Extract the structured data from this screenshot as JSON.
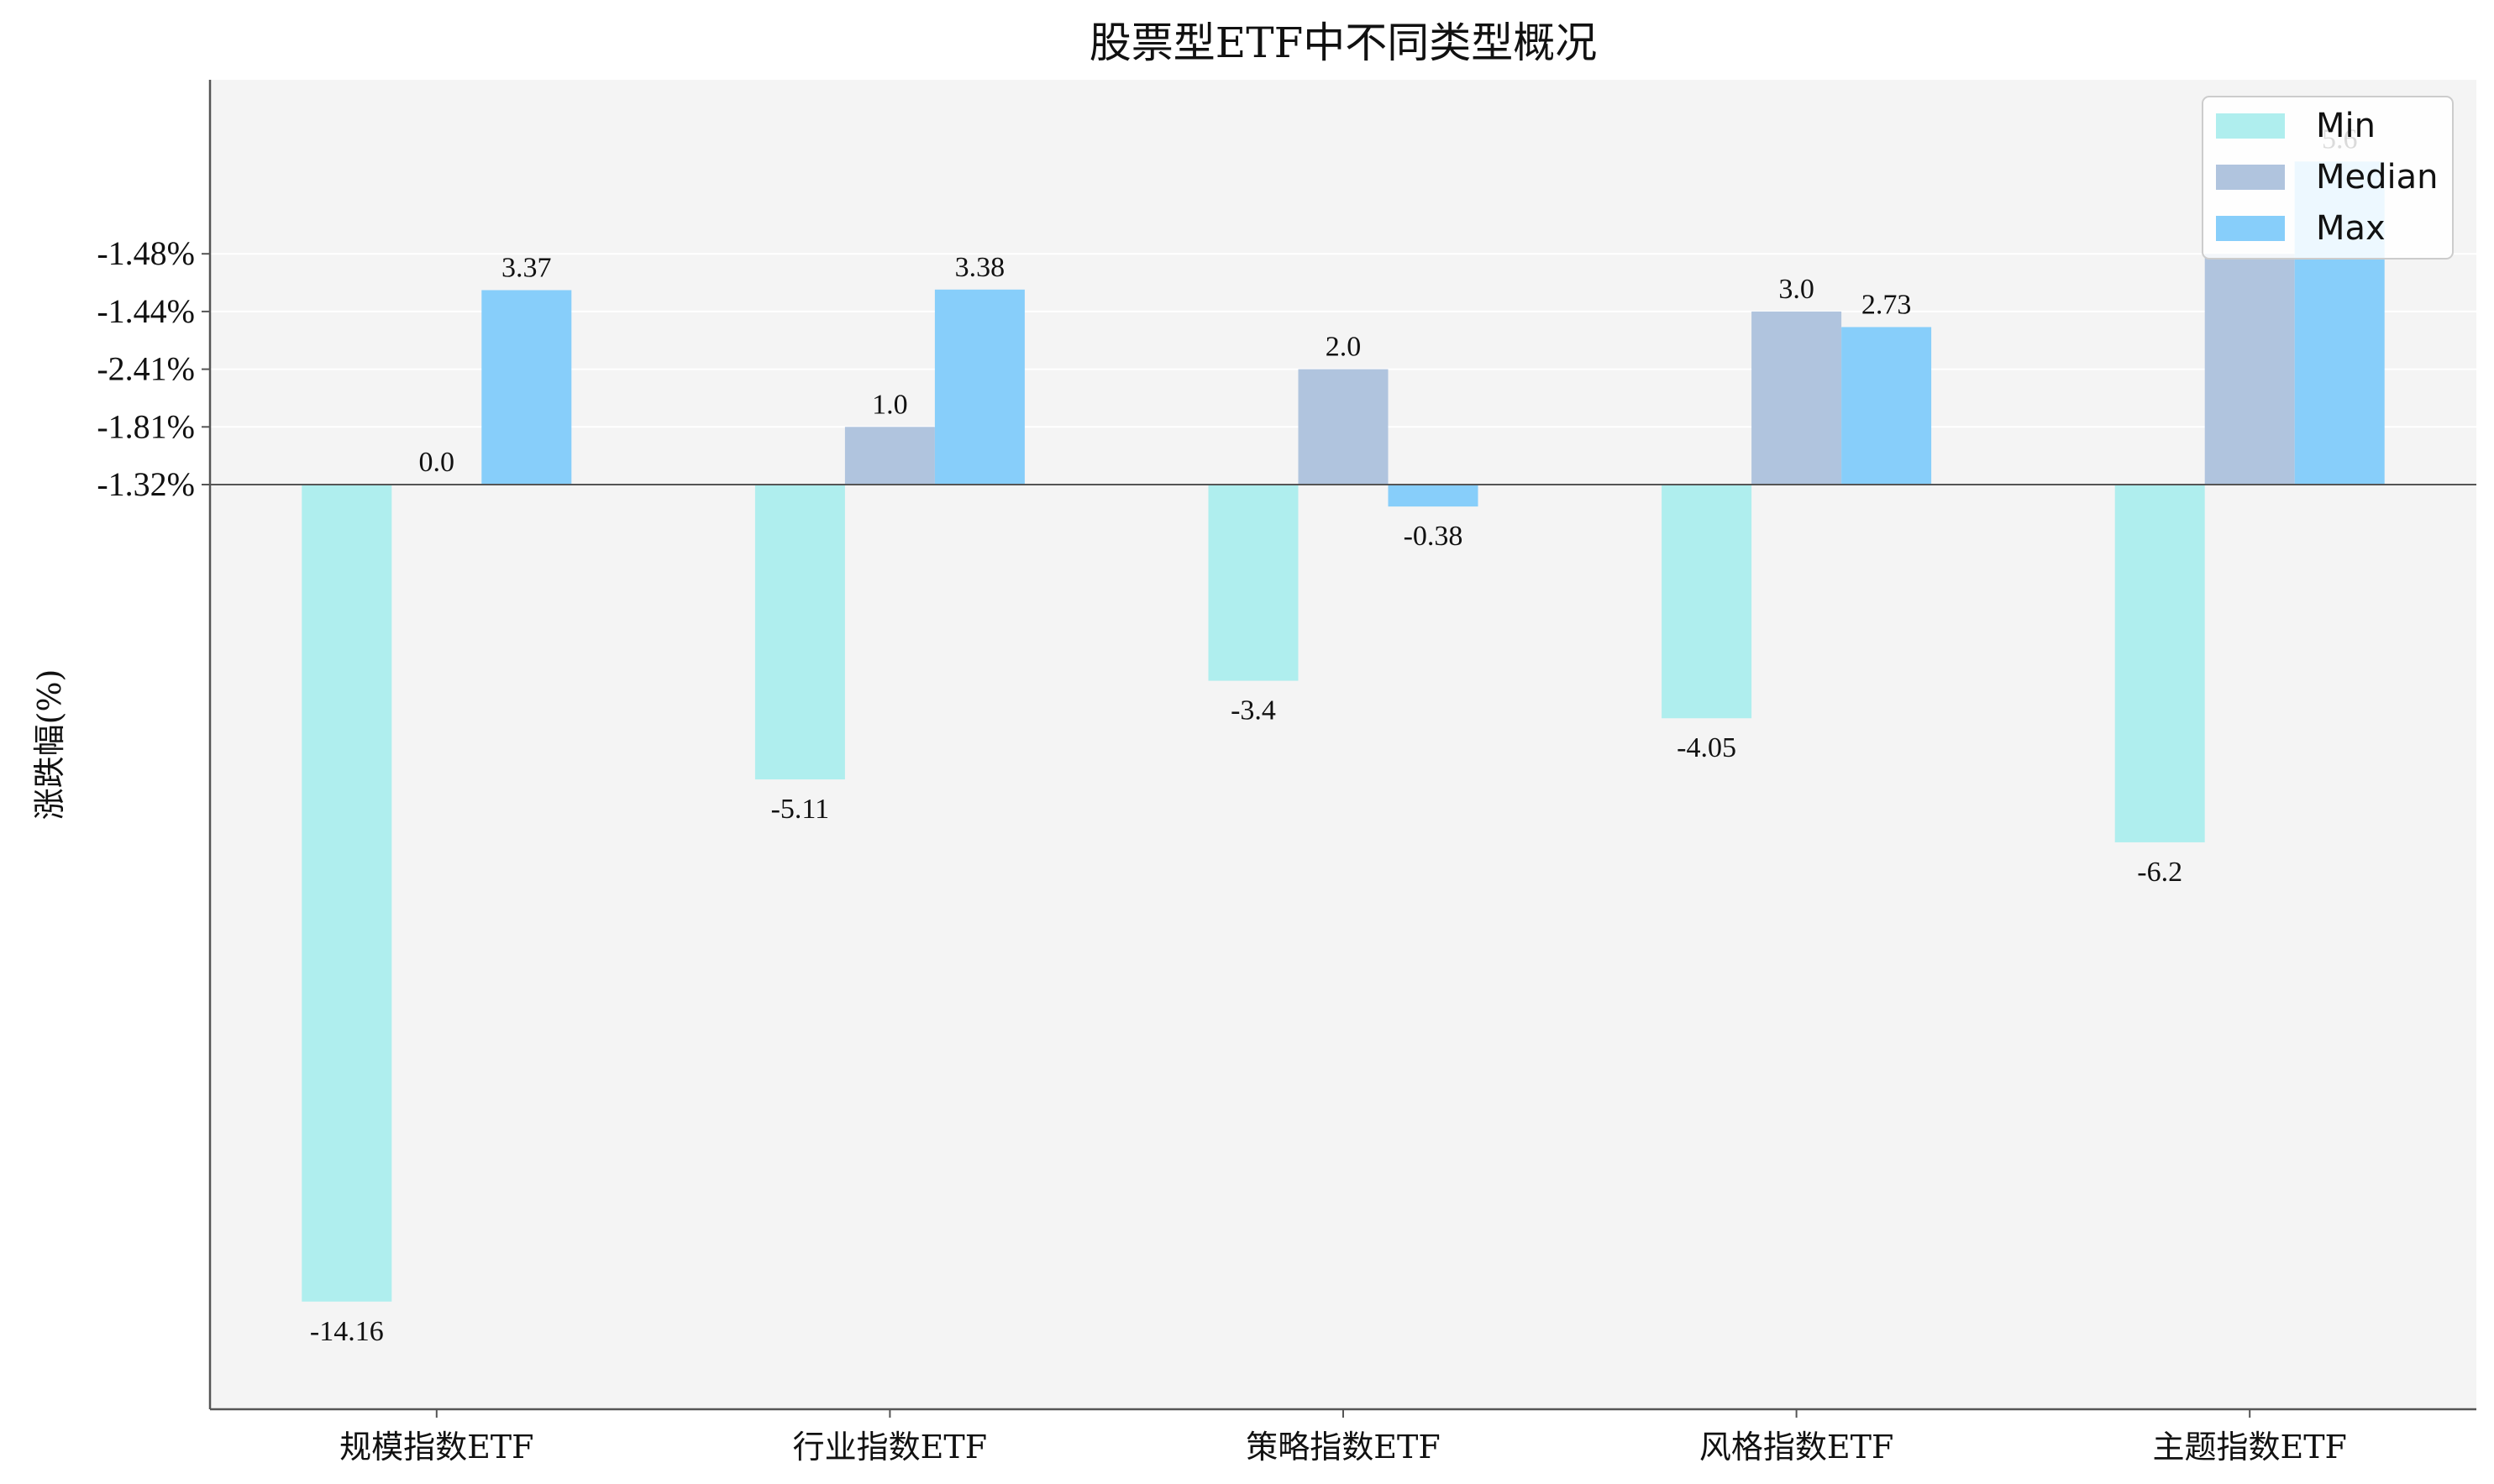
{
  "chart_data": {
    "type": "bar",
    "title": "股票型ETF中不同类型概况",
    "ylabel": "涨跌幅(%)",
    "xlabel": "",
    "categories": [
      "规模指数ETF",
      "行业指数ETF",
      "策略指数ETF",
      "风格指数ETF",
      "主题指数ETF"
    ],
    "series": [
      {
        "name": "Min",
        "color": "#afeeee",
        "values": [
          -14.16,
          -5.11,
          -3.4,
          -4.05,
          -6.2
        ],
        "labels": [
          "-14.16",
          "-5.11",
          "-3.4",
          "-4.05",
          "-6.2"
        ]
      },
      {
        "name": "Median",
        "color": "#b0c4de",
        "values": [
          0.0,
          1.0,
          2.0,
          3.0,
          4.0
        ],
        "labels": [
          "0.0",
          "1.0",
          "2.0",
          "3.0",
          "4.0"
        ]
      },
      {
        "name": "Max",
        "color": "#87cefa",
        "values": [
          3.37,
          3.38,
          -0.38,
          2.73,
          5.6
        ],
        "labels": [
          "3.37",
          "3.38",
          "-0.38",
          "2.73",
          "5.6"
        ]
      }
    ],
    "ylim": [
      -16,
      7
    ],
    "yticks": [
      {
        "value": 4,
        "label": "-1.48%"
      },
      {
        "value": 3,
        "label": "-1.44%"
      },
      {
        "value": 2,
        "label": "-2.41%"
      },
      {
        "value": 1,
        "label": "-1.81%"
      },
      {
        "value": 0,
        "label": "-1.32%"
      }
    ],
    "grid": true,
    "legend_position": "top-right",
    "background": "#f4f4f4"
  }
}
